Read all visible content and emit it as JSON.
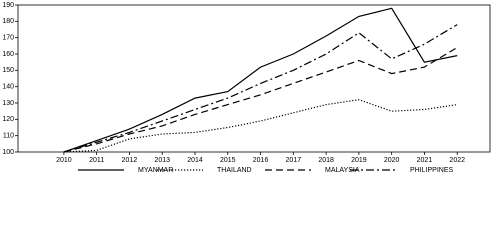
{
  "chart_data": {
    "type": "line",
    "x": [
      2010,
      2011,
      2012,
      2013,
      2014,
      2015,
      2016,
      2017,
      2018,
      2019,
      2020,
      2021,
      2022
    ],
    "xlim": [
      2008.6,
      2023
    ],
    "xticks": [
      2010,
      2011,
      2012,
      2013,
      2014,
      2015,
      2016,
      2017,
      2018,
      2019,
      2020,
      2021,
      2022
    ],
    "ylim": [
      100,
      190
    ],
    "yticks": [
      100,
      110,
      120,
      130,
      140,
      150,
      160,
      170,
      180,
      190
    ],
    "legend": "bottom",
    "series": [
      {
        "name": "MYANMAR",
        "color": "#000000",
        "dash": "solid",
        "values": [
          100,
          107,
          114,
          123,
          133,
          137,
          152,
          160,
          171,
          183,
          188,
          155,
          159
        ]
      },
      {
        "name": "THAILAND",
        "color": "#000000",
        "dash": "dotted",
        "values": [
          100,
          101,
          108,
          111,
          112,
          115,
          119,
          124,
          129,
          132,
          125,
          126,
          129
        ]
      },
      {
        "name": "MALAYSIA",
        "color": "#000000",
        "dash": "dashed",
        "values": [
          100,
          105,
          111,
          116,
          123,
          129,
          135,
          142,
          149,
          156,
          148,
          152,
          164
        ]
      },
      {
        "name": "PHILIPPINES",
        "color": "#000000",
        "dash": "dashdot",
        "values": [
          100,
          106,
          112,
          119,
          126,
          133,
          142,
          150,
          160,
          173,
          157,
          166,
          178
        ]
      }
    ]
  }
}
